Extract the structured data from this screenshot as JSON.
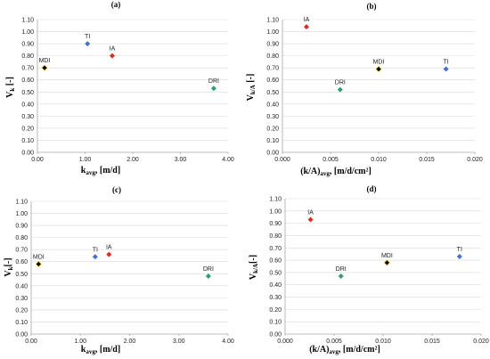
{
  "colors": {
    "MDI": "#000000",
    "TI": "#4472c4",
    "IA": "#e02a1e",
    "DRI": "#2e9e78",
    "grid": "#d9d9d9",
    "axis": "#a6a6a6"
  },
  "chart_data": [
    {
      "type": "scatter",
      "panel_label": "(a)",
      "ylabel": {
        "main": "V",
        "sub": "k",
        "suffix": " [-]"
      },
      "xlabel": {
        "main": "k",
        "sub": "avg",
        "suffix": ", [m/d]"
      },
      "xlim": [
        0,
        4
      ],
      "ylim": [
        0,
        1.1
      ],
      "xticks": [
        "0.00",
        "1.00",
        "2.00",
        "3.00",
        "4.00"
      ],
      "yticks": [
        "0.00",
        "0.10",
        "0.20",
        "0.30",
        "0.40",
        "0.50",
        "0.60",
        "0.70",
        "0.80",
        "0.90",
        "1.00",
        "1.10"
      ],
      "grid": true,
      "points": [
        {
          "label": "MDI",
          "x": 0.15,
          "y": 0.7,
          "color": "#000000"
        },
        {
          "label": "TI",
          "x": 1.05,
          "y": 0.9,
          "color": "#4472c4"
        },
        {
          "label": "IA",
          "x": 1.57,
          "y": 0.8,
          "color": "#e02a1e"
        },
        {
          "label": "DRI",
          "x": 3.7,
          "y": 0.53,
          "color": "#2e9e78"
        }
      ]
    },
    {
      "type": "scatter",
      "panel_label": "(b)",
      "ylabel": {
        "main": "V",
        "sub": "k/A",
        "suffix": " [-]"
      },
      "xlabel": {
        "main": "(k/A)",
        "sub": "avg",
        "suffix": ", [m/d/cm²]"
      },
      "xlim": [
        0,
        0.02
      ],
      "ylim": [
        0,
        1.1
      ],
      "xticks": [
        "0.000",
        "0.005",
        "0.010",
        "0.015",
        "0.020"
      ],
      "yticks": [
        "0.00",
        "0.10",
        "0.20",
        "0.30",
        "0.40",
        "0.50",
        "0.60",
        "0.70",
        "0.80",
        "0.90",
        "1.00",
        "1.10"
      ],
      "grid": true,
      "points": [
        {
          "label": "IA",
          "x": 0.0025,
          "y": 1.04,
          "color": "#e02a1e"
        },
        {
          "label": "MDI",
          "x": 0.01,
          "y": 0.69,
          "color": "#000000"
        },
        {
          "label": "TI",
          "x": 0.017,
          "y": 0.69,
          "color": "#4472c4"
        },
        {
          "label": "DRI",
          "x": 0.006,
          "y": 0.52,
          "color": "#2e9e78"
        }
      ]
    },
    {
      "type": "scatter",
      "panel_label": "(c)",
      "ylabel": {
        "main": "V",
        "sub": "k",
        "suffix": "[-]"
      },
      "xlabel": {
        "main": "k",
        "sub": "avg",
        "suffix": ", [m/d]"
      },
      "xlim": [
        0,
        4
      ],
      "ylim": [
        0,
        1.1
      ],
      "xticks": [
        "0.00",
        "1.00",
        "2.00",
        "3.00",
        "4.00"
      ],
      "yticks": [
        "0.00",
        "0.10",
        "0.20",
        "0.30",
        "0.40",
        "0.50",
        "0.60",
        "0.70",
        "0.80",
        "0.90",
        "1.00",
        "1.10"
      ],
      "grid": true,
      "points": [
        {
          "label": "MDI",
          "x": 0.15,
          "y": 0.58,
          "color": "#000000"
        },
        {
          "label": "TI",
          "x": 1.3,
          "y": 0.64,
          "color": "#4472c4"
        },
        {
          "label": "IA",
          "x": 1.58,
          "y": 0.66,
          "color": "#e02a1e"
        },
        {
          "label": "DRI",
          "x": 3.6,
          "y": 0.48,
          "color": "#2e9e78"
        }
      ]
    },
    {
      "type": "scatter",
      "panel_label": "(d)",
      "ylabel": {
        "main": "V",
        "sub": "k/A",
        "suffix": "[-]"
      },
      "xlabel": {
        "main": "(k/A)",
        "sub": "avg",
        "suffix": ", [m/d/cm²]"
      },
      "xlim": [
        0,
        0.02
      ],
      "ylim": [
        0,
        1.1
      ],
      "xticks": [
        "0.000",
        "0.005",
        "0.010",
        "0.015",
        "0.020"
      ],
      "yticks": [
        "0.00",
        "0.10",
        "0.20",
        "0.30",
        "0.40",
        "0.50",
        "0.60",
        "0.70",
        "0.80",
        "0.90",
        "1.00",
        "1.10"
      ],
      "grid": true,
      "points": [
        {
          "label": "IA",
          "x": 0.0026,
          "y": 0.93,
          "color": "#e02a1e"
        },
        {
          "label": "MDI",
          "x": 0.0104,
          "y": 0.58,
          "color": "#000000"
        },
        {
          "label": "TI",
          "x": 0.0178,
          "y": 0.63,
          "color": "#4472c4"
        },
        {
          "label": "DRI",
          "x": 0.0057,
          "y": 0.47,
          "color": "#2e9e78"
        }
      ]
    }
  ]
}
